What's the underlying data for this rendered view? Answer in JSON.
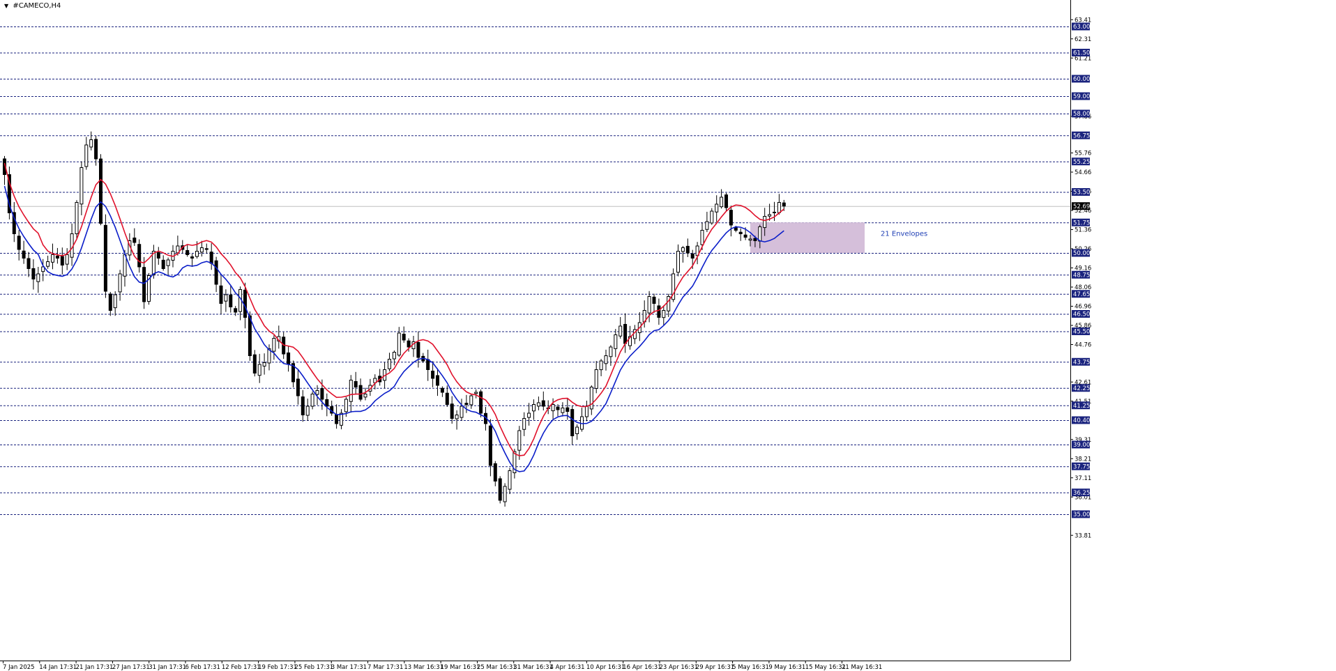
{
  "window": {
    "symbol_title": "#CAMECO,H4",
    "menu_arrow_glyph": "▼"
  },
  "chart_data": {
    "type": "candlestick",
    "title": "#CAMECO,H4",
    "yaxis": {
      "range": [
        33.4,
        64.2
      ],
      "tick_labels": [
        63.41,
        62.31,
        61.21,
        57.86,
        55.76,
        54.66,
        53.56,
        52.46,
        51.36,
        50.26,
        49.16,
        48.06,
        46.96,
        45.86,
        44.76,
        42.61,
        41.51,
        39.31,
        38.21,
        37.11,
        36.01,
        33.81
      ]
    },
    "xaxis": {
      "tick_labels": [
        "7 Jan 2025",
        "14 Jan 17:31",
        "21 Jan 17:31",
        "27 Jan 17:31",
        "31 Jan 17:31",
        "6 Feb 17:31",
        "12 Feb 17:31",
        "19 Feb 17:31",
        "25 Feb 17:31",
        "3 Mar 17:31",
        "7 Mar 17:31",
        "13 Mar 16:31",
        "19 Mar 16:31",
        "25 Mar 16:31",
        "31 Mar 16:31",
        "4 Apr 16:31",
        "10 Apr 16:31",
        "16 Apr 16:31",
        "23 Apr 16:31",
        "29 Apr 16:31",
        "5 May 16:31",
        "9 May 16:31",
        "15 May 16:31",
        "21 May 16:31"
      ]
    },
    "horizontal_levels": [
      63.0,
      61.5,
      60.0,
      59.0,
      58.0,
      56.75,
      55.25,
      53.5,
      51.75,
      50.0,
      48.75,
      47.65,
      46.5,
      45.5,
      43.75,
      42.25,
      41.25,
      40.4,
      39.0,
      37.75,
      36.25,
      35.0
    ],
    "current_price": 52.69,
    "level_color": "#1a237e",
    "current_price_color": "#000000",
    "candle_up_color": "#ffffff",
    "candle_down_color": "#000000",
    "candle_outline_color": "#000000",
    "closes": [
      54.5,
      52.3,
      51.1,
      50.2,
      49.7,
      49.1,
      48.5,
      48.8,
      49.2,
      49.5,
      49.9,
      49.7,
      49.3,
      49.9,
      51.1,
      52.9,
      54.9,
      56.2,
      56.5,
      55.4,
      51.7,
      47.8,
      46.7,
      47.6,
      48.8,
      49.9,
      50.7,
      50.6,
      49.2,
      47.2,
      48.7,
      50.1,
      49.7,
      49.1,
      49.6,
      50.1,
      50.4,
      50.2,
      49.9,
      49.7,
      50.1,
      50.3,
      50.2,
      49.4,
      48.2,
      47.1,
      47.6,
      46.9,
      46.6,
      47.9,
      46.3,
      44.1,
      43.1,
      43.6,
      43.7,
      44.5,
      45.1,
      45.2,
      44.2,
      43.6,
      42.6,
      41.8,
      40.7,
      41.2,
      41.9,
      42.1,
      41.6,
      41.2,
      40.8,
      40.2,
      40.8,
      41.6,
      42.7,
      42.3,
      41.6,
      41.9,
      42.4,
      42.8,
      42.6,
      43.3,
      43.9,
      44.3,
      45.4,
      45.0,
      44.6,
      44.9,
      44.0,
      43.8,
      43.3,
      42.8,
      42.4,
      42.0,
      41.3,
      40.5,
      40.7,
      41.2,
      41.3,
      41.8,
      42.0,
      40.8,
      40.2,
      37.8,
      36.9,
      35.8,
      36.6,
      37.5,
      38.6,
      39.8,
      40.5,
      40.8,
      41.3,
      41.4,
      41.2,
      41.1,
      41.3,
      41.0,
      41.1,
      40.9,
      39.5,
      40.0,
      40.6,
      41.2,
      42.3,
      43.3,
      43.8,
      44.1,
      44.6,
      45.3,
      45.8,
      44.8,
      45.2,
      45.6,
      46.0,
      46.7,
      47.5,
      47.1,
      46.3,
      46.7,
      47.5,
      48.8,
      50.1,
      50.3,
      50.0,
      49.7,
      50.4,
      51.3,
      51.8,
      52.4,
      52.8,
      53.2,
      52.6,
      51.6,
      51.3,
      51.1,
      50.9,
      50.8,
      50.7,
      51.5,
      52.1,
      52.2,
      52.3,
      52.9,
      52.69
    ]
  },
  "indicator": {
    "name": "21 Envelopes",
    "upper_color": "#e0112b",
    "lower_color": "#0b1ec9",
    "zone_color": "#d3bcd8",
    "label_color": "#1f3fb5"
  }
}
